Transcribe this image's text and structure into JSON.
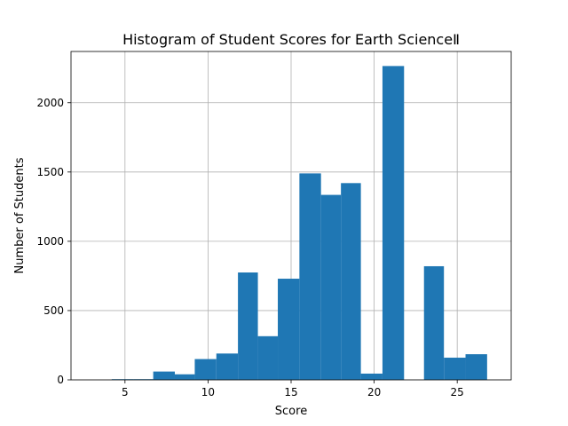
{
  "chart_data": {
    "type": "bar",
    "title": "Histogram of Student Scores for Earth ScienceⅡ",
    "xlabel": "Score",
    "ylabel": "Number of Students",
    "xlim": [
      1.75,
      28.25
    ],
    "ylim": [
      0,
      2370
    ],
    "xticks": [
      5,
      10,
      15,
      20,
      25
    ],
    "yticks": [
      0,
      500,
      1000,
      1500,
      2000
    ],
    "grid": true,
    "legend": "none",
    "bins": [
      {
        "start": 3.0,
        "end": 4.2,
        "count": 0
      },
      {
        "start": 4.2,
        "end": 5.5,
        "count": 5
      },
      {
        "start": 5.5,
        "end": 6.7,
        "count": 5
      },
      {
        "start": 6.7,
        "end": 8.0,
        "count": 60
      },
      {
        "start": 8.0,
        "end": 9.2,
        "count": 40
      },
      {
        "start": 9.2,
        "end": 10.5,
        "count": 150
      },
      {
        "start": 10.5,
        "end": 11.8,
        "count": 190
      },
      {
        "start": 11.8,
        "end": 13.0,
        "count": 775
      },
      {
        "start": 13.0,
        "end": 14.2,
        "count": 315
      },
      {
        "start": 14.2,
        "end": 15.5,
        "count": 730
      },
      {
        "start": 15.5,
        "end": 16.8,
        "count": 1490
      },
      {
        "start": 16.8,
        "end": 18.0,
        "count": 1335
      },
      {
        "start": 18.0,
        "end": 19.2,
        "count": 1420
      },
      {
        "start": 19.2,
        "end": 20.5,
        "count": 45
      },
      {
        "start": 20.5,
        "end": 21.8,
        "count": 2265
      },
      {
        "start": 21.8,
        "end": 23.0,
        "count": 0
      },
      {
        "start": 23.0,
        "end": 24.2,
        "count": 820
      },
      {
        "start": 24.2,
        "end": 25.5,
        "count": 160
      },
      {
        "start": 25.5,
        "end": 26.8,
        "count": 185
      }
    ],
    "bar_color": "#1f77b4"
  }
}
